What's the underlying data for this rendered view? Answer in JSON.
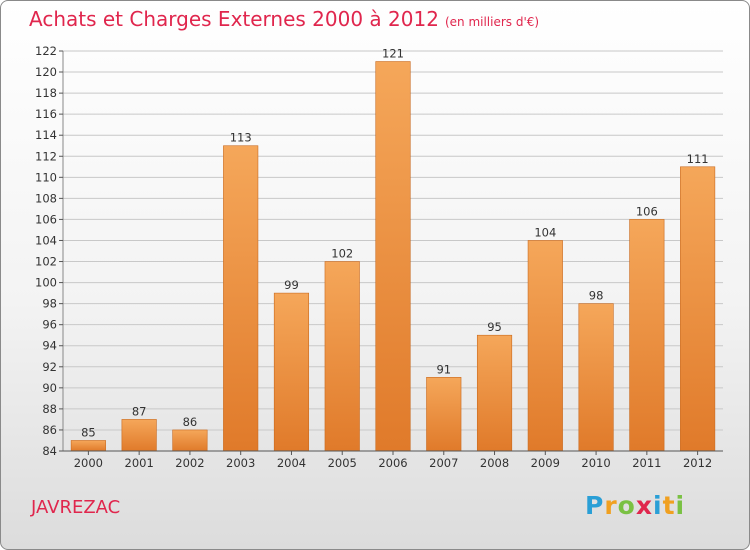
{
  "chart_data": {
    "type": "bar",
    "title": "Achats et Charges Externes 2000 à 2012",
    "unit_note": "(en milliers d'€)",
    "xlabel": "",
    "ylabel": "",
    "categories": [
      "2000",
      "2001",
      "2002",
      "2003",
      "2004",
      "2005",
      "2006",
      "2007",
      "2008",
      "2009",
      "2010",
      "2011",
      "2012"
    ],
    "values": [
      85,
      87,
      86,
      113,
      99,
      102,
      121,
      91,
      95,
      104,
      98,
      106,
      111
    ],
    "ylim": [
      84,
      122
    ],
    "yticks": [
      84,
      86,
      88,
      90,
      92,
      94,
      96,
      98,
      100,
      102,
      104,
      106,
      108,
      110,
      112,
      114,
      116,
      118,
      120,
      122
    ],
    "grid": true,
    "bar_color": "#f29c45",
    "bar_color_dark": "#e07a2a"
  },
  "footer": {
    "place": "JAVREZAC",
    "logo_letters": [
      "P",
      "r",
      "o",
      "x",
      "i",
      "t",
      "i"
    ],
    "logo_colors": [
      "#2a9fd6",
      "#f0a020",
      "#7ac143",
      "#e0264d",
      "#2a9fd6",
      "#f0a020",
      "#7ac143"
    ]
  }
}
